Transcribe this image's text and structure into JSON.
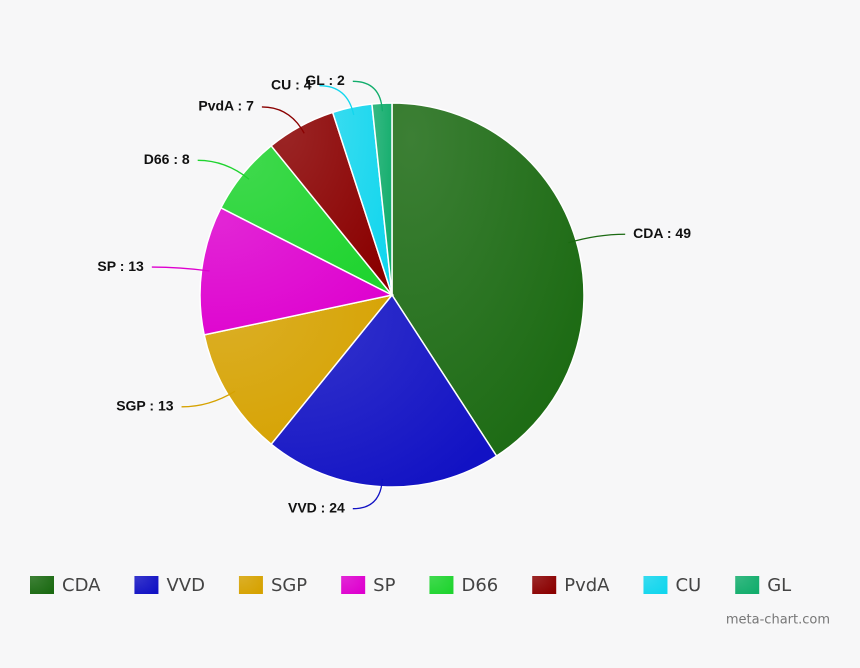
{
  "chart_data": {
    "type": "pie",
    "categories": [
      "CDA",
      "VVD",
      "SGP",
      "SP",
      "D66",
      "PvdA",
      "CU",
      "GL"
    ],
    "values": [
      49,
      24,
      13,
      13,
      8,
      7,
      4,
      2
    ],
    "value_labels": [
      "CDA : 49",
      "VVD : 24",
      "SGP : 13",
      "SP : 13",
      "D66 : 8",
      "PvdA : 7",
      "CU : 4",
      "GL : 2"
    ],
    "colors": [
      "#1b6a12",
      "#1212c4",
      "#d6a200",
      "#de00cf",
      "#1fd42f",
      "#8a0000",
      "#12d6ee",
      "#12ad6c"
    ],
    "legend": "bottom",
    "credit": "meta-chart.com"
  }
}
